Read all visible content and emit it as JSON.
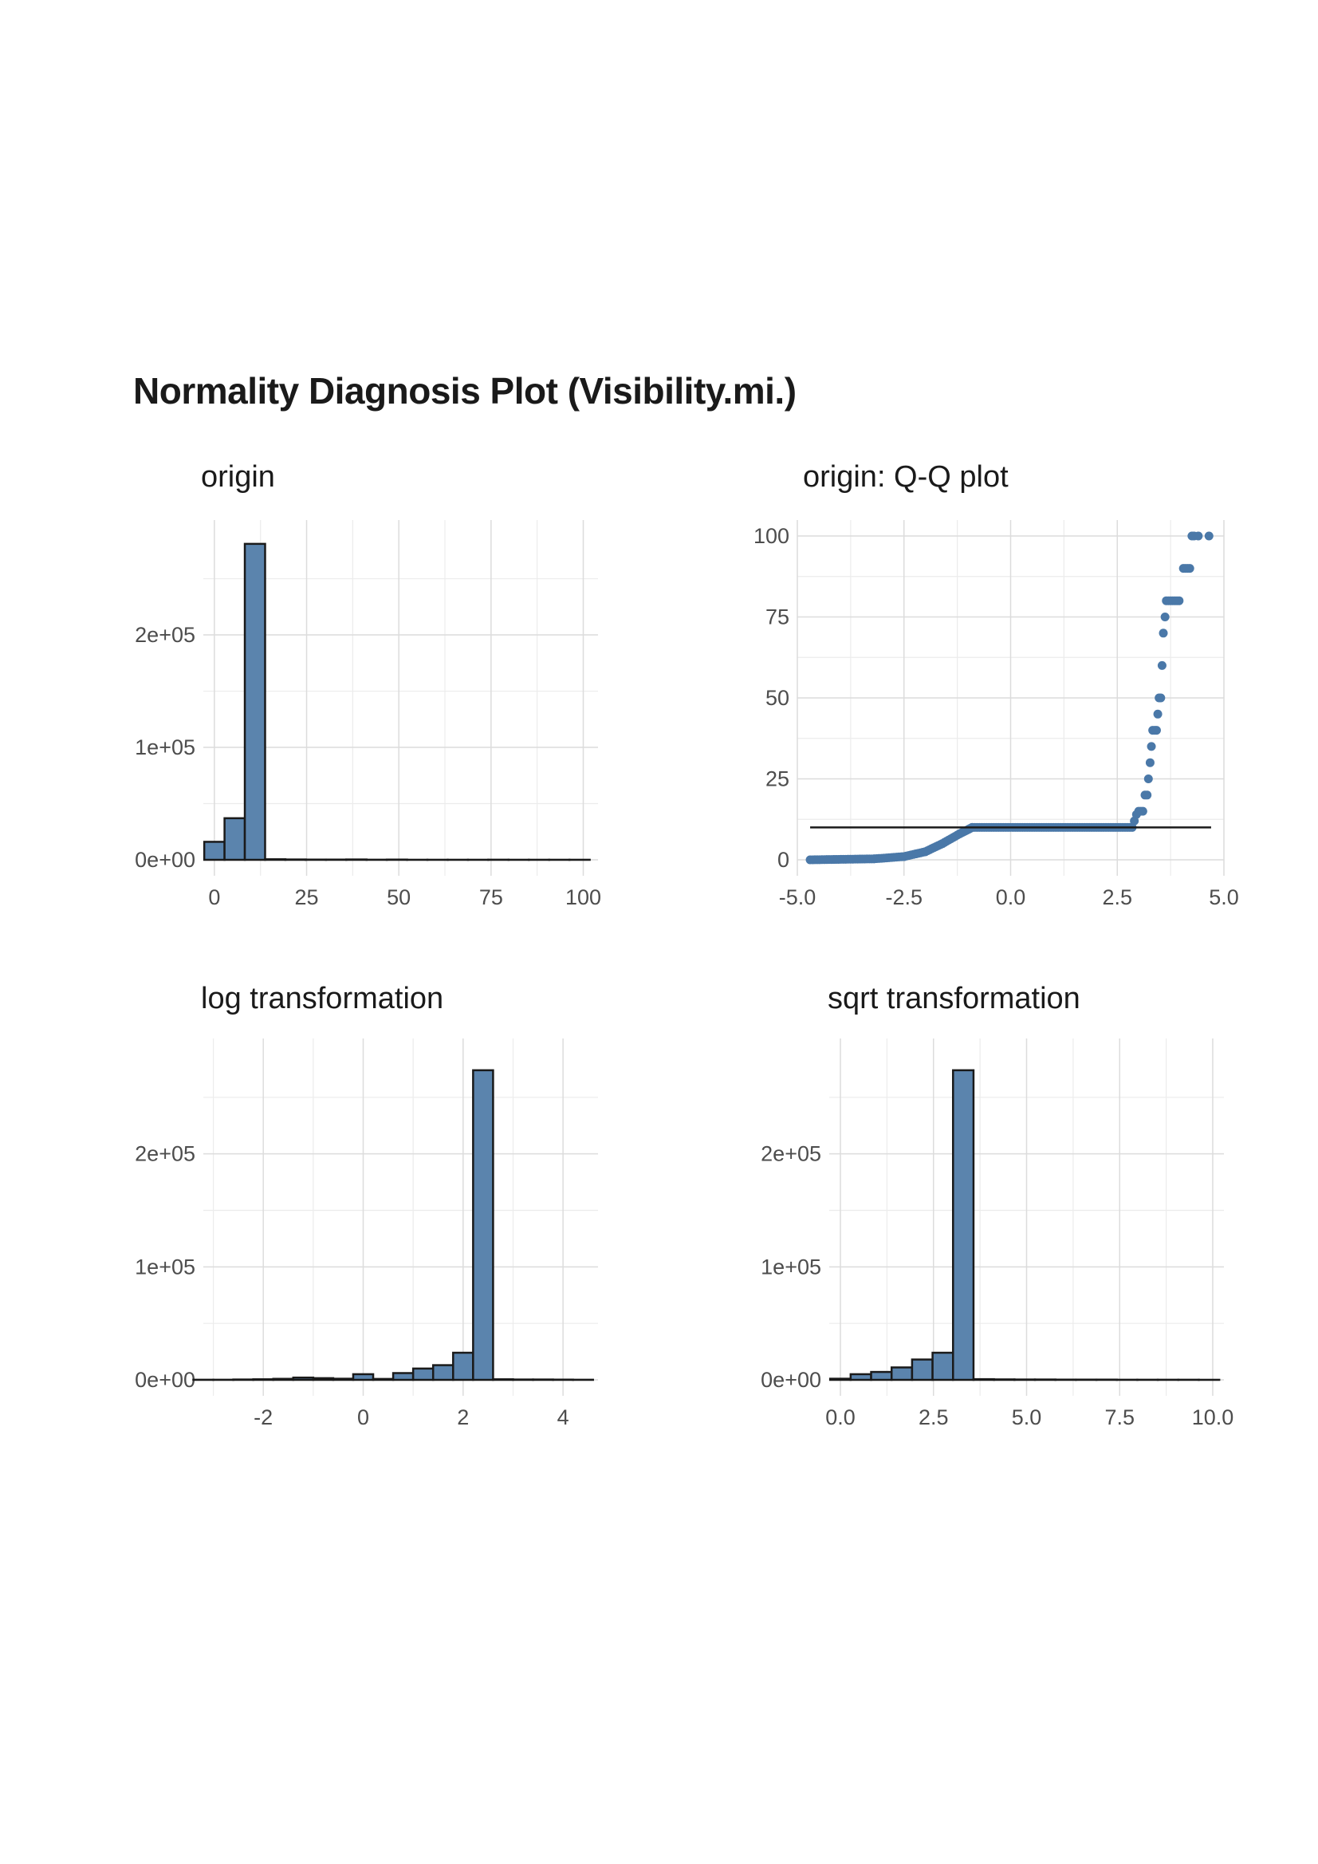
{
  "title": "Normality Diagnosis Plot (Visibility.mi.)",
  "colors": {
    "fill": "#5b84ad",
    "point": "#4a78a8",
    "outline": "#1a1a1a",
    "grid": "#dcdcdc"
  },
  "chart_data": [
    {
      "id": "origin",
      "type": "bar",
      "title": "origin",
      "xlim": [
        -3,
        104
      ],
      "ylim": [
        0,
        288000
      ],
      "x_ticks": [
        0,
        25,
        50,
        75,
        100
      ],
      "x_tick_labels": [
        "0",
        "25",
        "50",
        "75",
        "100"
      ],
      "y_ticks": [
        0,
        100000,
        200000
      ],
      "y_tick_labels": [
        "0e+00",
        "1e+05",
        "2e+05"
      ],
      "bin_width": 5.5,
      "bins": [
        {
          "x": 0,
          "y": 16000
        },
        {
          "x": 5.5,
          "y": 37000
        },
        {
          "x": 11,
          "y": 281000
        },
        {
          "x": 16.5,
          "y": 500
        },
        {
          "x": 22,
          "y": 300
        },
        {
          "x": 27.5,
          "y": 200
        },
        {
          "x": 33,
          "y": 200
        },
        {
          "x": 38.5,
          "y": 300
        },
        {
          "x": 44,
          "y": 100
        },
        {
          "x": 49.5,
          "y": 200
        },
        {
          "x": 55,
          "y": 50
        },
        {
          "x": 60.5,
          "y": 50
        },
        {
          "x": 66,
          "y": 50
        },
        {
          "x": 71.5,
          "y": 50
        },
        {
          "x": 77,
          "y": 100
        },
        {
          "x": 82.5,
          "y": 50
        },
        {
          "x": 88,
          "y": 50
        },
        {
          "x": 93.5,
          "y": 50
        },
        {
          "x": 99,
          "y": 50
        }
      ],
      "grid": true
    },
    {
      "id": "qq",
      "type": "scatter",
      "title": "origin: Q-Q plot",
      "xlim": [
        -5,
        5
      ],
      "ylim": [
        0,
        100
      ],
      "x_ticks": [
        -5,
        -2.5,
        0,
        2.5,
        5
      ],
      "x_tick_labels": [
        "-5.0",
        "-2.5",
        "0.0",
        "2.5",
        "5.0"
      ],
      "y_ticks": [
        0,
        25,
        50,
        75,
        100
      ],
      "y_tick_labels": [
        "0",
        "25",
        "50",
        "75",
        "100"
      ],
      "reference_line": {
        "x": [
          -4.7,
          4.7
        ],
        "y": [
          10,
          10
        ]
      },
      "segments": [
        {
          "x0": -4.7,
          "x1": -3.2,
          "y0": 0,
          "y1": 0.3
        },
        {
          "x0": -3.2,
          "x1": -2.5,
          "y0": 0.3,
          "y1": 1
        },
        {
          "x0": -2.5,
          "x1": -2.0,
          "y0": 1,
          "y1": 2.5
        },
        {
          "x0": -2.0,
          "x1": -1.6,
          "y0": 2.5,
          "y1": 5
        },
        {
          "x0": -1.6,
          "x1": -1.2,
          "y0": 5,
          "y1": 8
        },
        {
          "x0": -1.2,
          "x1": -0.9,
          "y0": 8,
          "y1": 10
        },
        {
          "x0": -0.9,
          "x1": 2.85,
          "y0": 10,
          "y1": 10
        }
      ],
      "points": [
        {
          "x": 2.9,
          "y": 12
        },
        {
          "x": 2.95,
          "y": 14
        },
        {
          "x": 3.0,
          "y": 15
        },
        {
          "x": 3.05,
          "y": 15
        },
        {
          "x": 3.1,
          "y": 15
        },
        {
          "x": 3.15,
          "y": 20
        },
        {
          "x": 3.2,
          "y": 20
        },
        {
          "x": 3.23,
          "y": 25
        },
        {
          "x": 3.27,
          "y": 30
        },
        {
          "x": 3.3,
          "y": 35
        },
        {
          "x": 3.33,
          "y": 40
        },
        {
          "x": 3.38,
          "y": 40
        },
        {
          "x": 3.42,
          "y": 40
        },
        {
          "x": 3.45,
          "y": 45
        },
        {
          "x": 3.48,
          "y": 50
        },
        {
          "x": 3.52,
          "y": 50
        },
        {
          "x": 3.55,
          "y": 60
        },
        {
          "x": 3.58,
          "y": 70
        },
        {
          "x": 3.62,
          "y": 75
        },
        {
          "x": 3.65,
          "y": 80
        },
        {
          "x": 3.7,
          "y": 80
        },
        {
          "x": 3.75,
          "y": 80
        },
        {
          "x": 3.8,
          "y": 80
        },
        {
          "x": 3.85,
          "y": 80
        },
        {
          "x": 3.9,
          "y": 80
        },
        {
          "x": 3.95,
          "y": 80
        },
        {
          "x": 4.05,
          "y": 90
        },
        {
          "x": 4.1,
          "y": 90
        },
        {
          "x": 4.15,
          "y": 90
        },
        {
          "x": 4.2,
          "y": 90
        },
        {
          "x": 4.25,
          "y": 100
        },
        {
          "x": 4.3,
          "y": 100
        },
        {
          "x": 4.4,
          "y": 100
        },
        {
          "x": 4.65,
          "y": 100
        }
      ],
      "grid": true
    },
    {
      "id": "log",
      "type": "bar",
      "title": "log transformation",
      "xlim": [
        -3.2,
        4.7
      ],
      "ylim": [
        0,
        288000
      ],
      "x_ticks": [
        -2,
        0,
        2,
        4
      ],
      "x_tick_labels": [
        "-2",
        "0",
        "2",
        "4"
      ],
      "y_ticks": [
        0,
        100000,
        200000
      ],
      "y_tick_labels": [
        "0e+00",
        "1e+05",
        "2e+05"
      ],
      "bin_width": 0.4,
      "bins": [
        {
          "x": -3.2,
          "y": 100
        },
        {
          "x": -2.8,
          "y": 100
        },
        {
          "x": -2.4,
          "y": 300
        },
        {
          "x": -2.0,
          "y": 500
        },
        {
          "x": -1.6,
          "y": 900
        },
        {
          "x": -1.2,
          "y": 2000
        },
        {
          "x": -0.8,
          "y": 1500
        },
        {
          "x": -0.4,
          "y": 1000
        },
        {
          "x": 0.0,
          "y": 5000
        },
        {
          "x": 0.4,
          "y": 800
        },
        {
          "x": 0.8,
          "y": 6000
        },
        {
          "x": 1.2,
          "y": 10000
        },
        {
          "x": 1.6,
          "y": 13000
        },
        {
          "x": 2.0,
          "y": 24000
        },
        {
          "x": 2.4,
          "y": 274000
        },
        {
          "x": 2.8,
          "y": 500
        },
        {
          "x": 3.2,
          "y": 300
        },
        {
          "x": 3.6,
          "y": 300
        },
        {
          "x": 4.0,
          "y": 200
        },
        {
          "x": 4.4,
          "y": 100
        }
      ],
      "grid": true
    },
    {
      "id": "sqrt",
      "type": "bar",
      "title": "sqrt transformation",
      "xlim": [
        -0.3,
        10.3
      ],
      "ylim": [
        0,
        288000
      ],
      "x_ticks": [
        0,
        2.5,
        5,
        7.5,
        10
      ],
      "x_tick_labels": [
        "0.0",
        "2.5",
        "5.0",
        "7.5",
        "10.0"
      ],
      "y_ticks": [
        0,
        100000,
        200000
      ],
      "y_tick_labels": [
        "0e+00",
        "1e+05",
        "2e+05"
      ],
      "bin_width": 0.55,
      "bins": [
        {
          "x": 0.0,
          "y": 1000
        },
        {
          "x": 0.55,
          "y": 5000
        },
        {
          "x": 1.1,
          "y": 7000
        },
        {
          "x": 1.65,
          "y": 11000
        },
        {
          "x": 2.2,
          "y": 18000
        },
        {
          "x": 2.75,
          "y": 24000
        },
        {
          "x": 3.3,
          "y": 274000
        },
        {
          "x": 3.85,
          "y": 600
        },
        {
          "x": 4.4,
          "y": 400
        },
        {
          "x": 4.95,
          "y": 300
        },
        {
          "x": 5.5,
          "y": 300
        },
        {
          "x": 6.05,
          "y": 200
        },
        {
          "x": 6.6,
          "y": 200
        },
        {
          "x": 7.15,
          "y": 200
        },
        {
          "x": 7.7,
          "y": 100
        },
        {
          "x": 8.25,
          "y": 100
        },
        {
          "x": 8.8,
          "y": 100
        },
        {
          "x": 9.35,
          "y": 100
        },
        {
          "x": 9.9,
          "y": 50
        }
      ],
      "grid": true
    }
  ]
}
